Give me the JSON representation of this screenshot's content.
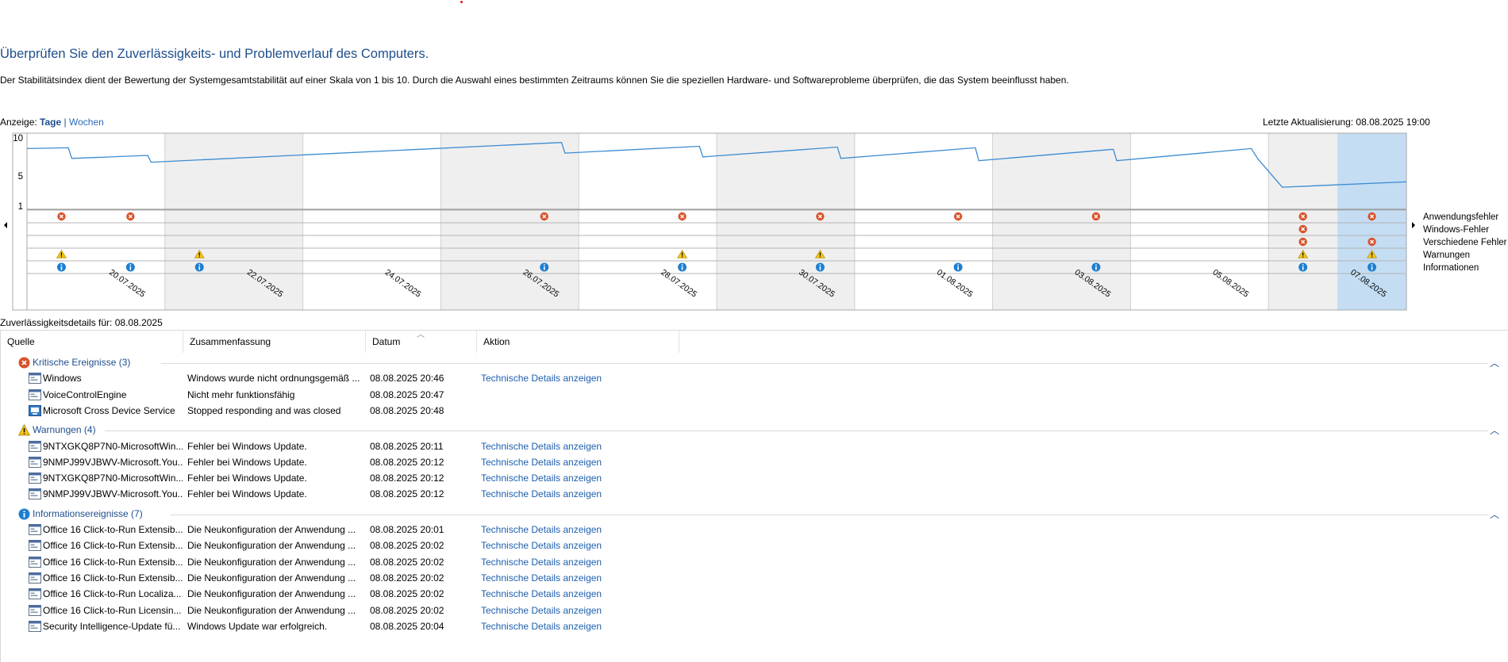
{
  "header": {
    "title": "Überprüfen Sie den Zuverlässigkeits- und Problemverlauf des Computers.",
    "description": "Der Stabilitätsindex dient der Bewertung der Systemgesamtstabilität auf einer Skala von 1 bis 10. Durch die Auswahl eines bestimmten Zeitraums können Sie die speziellen Hardware- und Softwareprobleme überprüfen, die das System beeinflusst haben."
  },
  "view": {
    "label": "Anzeige:",
    "days": "Tage",
    "separator": "|",
    "weeks": "Wochen",
    "selected": "Tage"
  },
  "last_update": "Letzte Aktualisierung: 08.08.2025 19:00",
  "colors": {
    "accent": "#1e4e8c",
    "link": "#1e5fae",
    "chart_line": "#3b8bd1",
    "selected_column": "#c4ddf3",
    "error": "#d9532c",
    "warning": "#f2c318",
    "info": "#1c7fd3"
  },
  "chart_data": {
    "type": "line",
    "title": "",
    "xlabel": "",
    "ylabel": "",
    "ylim": [
      1,
      10
    ],
    "y_ticks": [
      "10",
      "5",
      "1"
    ],
    "x_tick_labels": [
      "20.07.2025",
      "22.07.2025",
      "24.07.2025",
      "26.07.2025",
      "28.07.2025",
      "30.07.2025",
      "01.08.2025",
      "03.08.2025",
      "05.08.2025",
      "07.08.2025"
    ],
    "x_tick_days": [
      1,
      3,
      5,
      7,
      9,
      11,
      13,
      15,
      17,
      19
    ],
    "days_count": 20,
    "selected_day": 19,
    "stability_line": [
      {
        "x": 0.0,
        "y": 8.6
      },
      {
        "x": 0.6,
        "y": 8.7
      },
      {
        "x": 0.65,
        "y": 7.3
      },
      {
        "x": 1.75,
        "y": 7.7
      },
      {
        "x": 1.8,
        "y": 6.8
      },
      {
        "x": 7.75,
        "y": 9.4
      },
      {
        "x": 7.8,
        "y": 8.0
      },
      {
        "x": 9.75,
        "y": 8.9
      },
      {
        "x": 9.8,
        "y": 7.5
      },
      {
        "x": 11.75,
        "y": 8.8
      },
      {
        "x": 11.8,
        "y": 7.3
      },
      {
        "x": 13.75,
        "y": 8.7
      },
      {
        "x": 13.8,
        "y": 7.0
      },
      {
        "x": 15.75,
        "y": 8.5
      },
      {
        "x": 15.8,
        "y": 7.0
      },
      {
        "x": 17.75,
        "y": 8.6
      },
      {
        "x": 17.85,
        "y": 7.2
      },
      {
        "x": 18.2,
        "y": 3.5
      },
      {
        "x": 20.0,
        "y": 4.2
      }
    ],
    "event_rows": [
      {
        "label": "Anwendungsfehler",
        "kind": "error",
        "days": [
          0,
          1,
          7,
          9,
          11,
          13,
          15,
          18,
          19
        ]
      },
      {
        "label": "Windows-Fehler",
        "kind": "error",
        "days": [
          18
        ]
      },
      {
        "label": "Verschiedene Fehler",
        "kind": "error",
        "days": [
          18,
          19
        ]
      },
      {
        "label": "Warnungen",
        "kind": "warning",
        "days": [
          0,
          2,
          9,
          11,
          18,
          19
        ]
      },
      {
        "label": "Informationen",
        "kind": "info",
        "days": [
          0,
          1,
          2,
          7,
          9,
          11,
          13,
          15,
          18,
          19
        ]
      }
    ]
  },
  "details": {
    "label": "Zuverlässigkeitsdetails für: 08.08.2025",
    "columns": [
      "Quelle",
      "Zusammenfassung",
      "Datum",
      "Aktion"
    ],
    "groups": [
      {
        "icon": "error-icon",
        "label": "Kritische Ereignisse (3)",
        "items": [
          {
            "icon": "app-icon",
            "source": "Windows",
            "summary": "Windows wurde nicht ordnungsgemäß ...",
            "date": "08.08.2025 20:46",
            "action": "Technische Details anzeigen"
          },
          {
            "icon": "app-icon",
            "source": "VoiceControlEngine",
            "summary": "Nicht mehr funktionsfähig",
            "date": "08.08.2025 20:47",
            "action": ""
          },
          {
            "icon": "device-app-icon",
            "source": "Microsoft Cross Device Service",
            "summary": "Stopped responding and was closed",
            "date": "08.08.2025 20:48",
            "action": ""
          }
        ]
      },
      {
        "icon": "warning-icon",
        "label": "Warnungen (4)",
        "items": [
          {
            "icon": "app-icon",
            "source": "9NTXGKQ8P7N0-MicrosoftWin...",
            "summary": "Fehler bei Windows Update.",
            "date": "08.08.2025 20:11",
            "action": "Technische Details anzeigen"
          },
          {
            "icon": "app-icon",
            "source": "9NMPJ99VJBWV-Microsoft.You...",
            "summary": "Fehler bei Windows Update.",
            "date": "08.08.2025 20:12",
            "action": "Technische Details anzeigen"
          },
          {
            "icon": "app-icon",
            "source": "9NTXGKQ8P7N0-MicrosoftWin...",
            "summary": "Fehler bei Windows Update.",
            "date": "08.08.2025 20:12",
            "action": "Technische Details anzeigen"
          },
          {
            "icon": "app-icon",
            "source": "9NMPJ99VJBWV-Microsoft.You...",
            "summary": "Fehler bei Windows Update.",
            "date": "08.08.2025 20:12",
            "action": "Technische Details anzeigen"
          }
        ]
      },
      {
        "icon": "info-icon",
        "label": "Informationsereignisse (7)",
        "items": [
          {
            "icon": "app-icon",
            "source": "Office 16 Click-to-Run Extensib...",
            "summary": "Die Neukonfiguration der Anwendung ...",
            "date": "08.08.2025 20:01",
            "action": "Technische Details anzeigen"
          },
          {
            "icon": "app-icon",
            "source": "Office 16 Click-to-Run Extensib...",
            "summary": "Die Neukonfiguration der Anwendung ...",
            "date": "08.08.2025 20:02",
            "action": "Technische Details anzeigen"
          },
          {
            "icon": "app-icon",
            "source": "Office 16 Click-to-Run Extensib...",
            "summary": "Die Neukonfiguration der Anwendung ...",
            "date": "08.08.2025 20:02",
            "action": "Technische Details anzeigen"
          },
          {
            "icon": "app-icon",
            "source": "Office 16 Click-to-Run Extensib...",
            "summary": "Die Neukonfiguration der Anwendung ...",
            "date": "08.08.2025 20:02",
            "action": "Technische Details anzeigen"
          },
          {
            "icon": "app-icon",
            "source": "Office 16 Click-to-Run Localiza...",
            "summary": "Die Neukonfiguration der Anwendung ...",
            "date": "08.08.2025 20:02",
            "action": "Technische Details anzeigen"
          },
          {
            "icon": "app-icon",
            "source": "Office 16 Click-to-Run Licensin...",
            "summary": "Die Neukonfiguration der Anwendung ...",
            "date": "08.08.2025 20:02",
            "action": "Technische Details anzeigen"
          },
          {
            "icon": "app-icon",
            "source": "Security Intelligence-Update fü...",
            "summary": "Windows Update war erfolgreich.",
            "date": "08.08.2025 20:04",
            "action": "Technische Details anzeigen"
          }
        ]
      }
    ]
  }
}
